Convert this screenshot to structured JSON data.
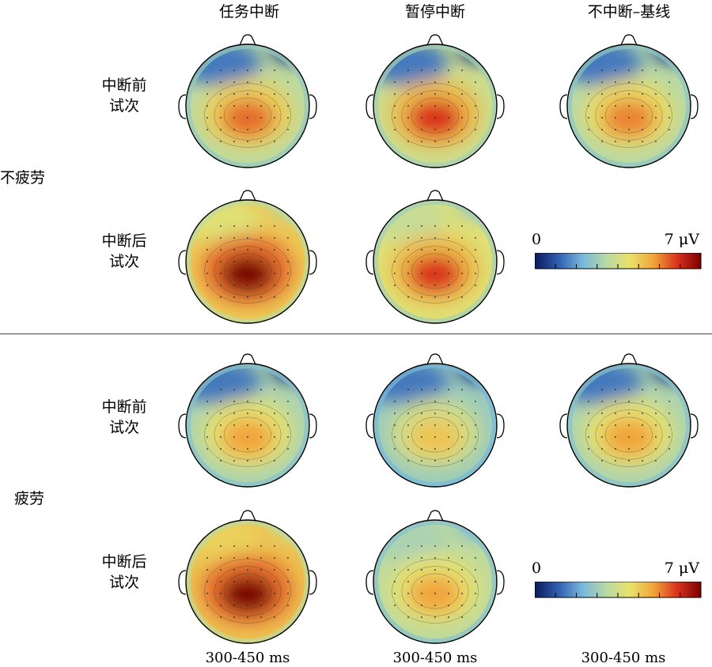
{
  "columns": [
    "任务中断",
    "暂停中断",
    "不中断–基线"
  ],
  "groups": [
    {
      "label": "不疲劳",
      "rows": [
        {
          "label_line1": "中断前",
          "label_line2": "试次"
        },
        {
          "label_line1": "中断后",
          "label_line2": "试次"
        }
      ]
    },
    {
      "label": "疲劳",
      "rows": [
        {
          "label_line1": "中断前",
          "label_line2": "试次"
        },
        {
          "label_line1": "中断后",
          "label_line2": "试次"
        }
      ]
    }
  ],
  "time_windows": [
    "300-450 ms",
    "300-450 ms",
    "300-450 ms"
  ],
  "colorbar": {
    "min_label": "0",
    "max_label": "7 μV",
    "min": 0,
    "max": 7,
    "unit": "μV",
    "colormap": [
      "#0a1a5c",
      "#2f5fb0",
      "#76b7da",
      "#b8d9a6",
      "#e9e26a",
      "#f1a53a",
      "#d9321e",
      "#7a0000"
    ]
  },
  "topomaps": [
    {
      "group": "不疲劳",
      "trial": "中断前",
      "condition": "任务中断",
      "central_peak_uV": 5.5,
      "frontal_min_uV": 0.5
    },
    {
      "group": "不疲劳",
      "trial": "中断前",
      "condition": "暂停中断",
      "central_peak_uV": 6.0,
      "frontal_min_uV": 0.5
    },
    {
      "group": "不疲劳",
      "trial": "中断前",
      "condition": "不中断–基线",
      "central_peak_uV": 5.3,
      "frontal_min_uV": 0.5
    },
    {
      "group": "不疲劳",
      "trial": "中断后",
      "condition": "任务中断",
      "central_peak_uV": 7.0,
      "frontal_min_uV": 3.0
    },
    {
      "group": "不疲劳",
      "trial": "中断后",
      "condition": "暂停中断",
      "central_peak_uV": 6.0,
      "frontal_min_uV": 2.5
    },
    {
      "group": "疲劳",
      "trial": "中断前",
      "condition": "任务中断",
      "central_peak_uV": 5.0,
      "frontal_min_uV": 0.5
    },
    {
      "group": "疲劳",
      "trial": "中断前",
      "condition": "暂停中断",
      "central_peak_uV": 4.5,
      "frontal_min_uV": 0.5
    },
    {
      "group": "疲劳",
      "trial": "中断前",
      "condition": "不中断–基线",
      "central_peak_uV": 5.0,
      "frontal_min_uV": 0.5
    },
    {
      "group": "疲劳",
      "trial": "中断后",
      "condition": "任务中断",
      "central_peak_uV": 7.0,
      "frontal_min_uV": 3.5
    },
    {
      "group": "疲劳",
      "trial": "中断后",
      "condition": "暂停中断",
      "central_peak_uV": 5.0,
      "frontal_min_uV": 2.0
    }
  ]
}
